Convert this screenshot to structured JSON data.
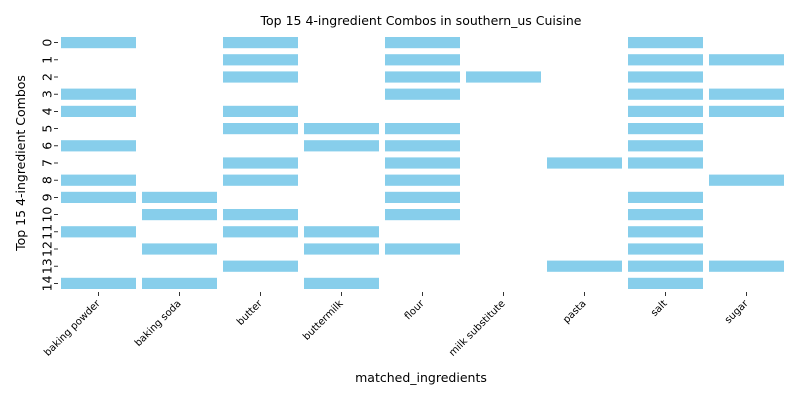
{
  "chart_data": {
    "type": "heatmap",
    "title": "Top 15 4-ingredient Combos in southern_us Cuisine",
    "xlabel": "matched_ingredients",
    "ylabel": "Top 15 4-ingredient Combos",
    "columns": [
      "baking powder",
      "baking soda",
      "butter",
      "buttermilk",
      "flour",
      "milk substitute",
      "pasta",
      "salt",
      "sugar"
    ],
    "rows": [
      "0",
      "1",
      "2",
      "3",
      "4",
      "5",
      "6",
      "7",
      "8",
      "9",
      "10",
      "11",
      "12",
      "13",
      "14"
    ],
    "cell_color": "#87ceeb",
    "grid": false,
    "matrix": [
      [
        1,
        0,
        1,
        0,
        1,
        0,
        0,
        1,
        0
      ],
      [
        0,
        0,
        1,
        0,
        1,
        0,
        0,
        1,
        1
      ],
      [
        0,
        0,
        1,
        0,
        1,
        1,
        0,
        1,
        0
      ],
      [
        1,
        0,
        0,
        0,
        1,
        0,
        0,
        1,
        1
      ],
      [
        1,
        0,
        1,
        0,
        0,
        0,
        0,
        1,
        1
      ],
      [
        0,
        0,
        1,
        1,
        1,
        0,
        0,
        1,
        0
      ],
      [
        1,
        0,
        0,
        1,
        1,
        0,
        0,
        1,
        0
      ],
      [
        0,
        0,
        1,
        0,
        1,
        0,
        1,
        1,
        0
      ],
      [
        1,
        0,
        1,
        0,
        1,
        0,
        0,
        0,
        1
      ],
      [
        1,
        1,
        0,
        0,
        1,
        0,
        0,
        1,
        0
      ],
      [
        0,
        1,
        1,
        0,
        1,
        0,
        0,
        1,
        0
      ],
      [
        1,
        0,
        1,
        1,
        0,
        0,
        0,
        1,
        0
      ],
      [
        0,
        1,
        0,
        1,
        1,
        0,
        0,
        1,
        0
      ],
      [
        0,
        0,
        1,
        0,
        0,
        0,
        1,
        1,
        1
      ],
      [
        1,
        1,
        0,
        1,
        0,
        0,
        0,
        1,
        0
      ]
    ]
  }
}
